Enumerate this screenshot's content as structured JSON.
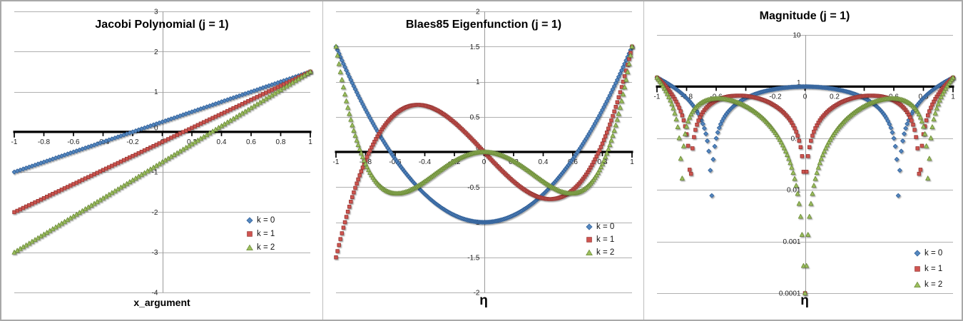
{
  "colors": {
    "background": "#ffffff",
    "outer_border": "#a9a9a9",
    "panel_separator": "#bdbdbd",
    "gridline": "#b0b0b0",
    "center_line": "#9b9b9b",
    "axis": "#000000",
    "tick_text": "#1f1f1f",
    "series": [
      {
        "name": "k = 0",
        "fill": "#5488c0",
        "stroke": "#35639b"
      },
      {
        "name": "k = 1",
        "fill": "#cf5450",
        "stroke": "#9c3a37"
      },
      {
        "name": "k = 2",
        "fill": "#9dbf5e",
        "stroke": "#6f8f3d"
      }
    ]
  },
  "chart_data": [
    {
      "type": "scatter",
      "title": "Jacobi Polynomial (j = 1)",
      "xlabel": "x_argument",
      "scale": "linear",
      "grid": true,
      "legend_position": "inside-right",
      "xlim": [
        -1,
        1
      ],
      "ylim": [
        -4,
        3
      ],
      "axis_cross": 0,
      "x_step": 0.02,
      "xtick_values": [
        -1,
        -0.8,
        -0.6,
        -0.4,
        -0.2,
        0,
        0.2,
        0.4,
        0.6,
        0.8,
        1
      ],
      "xtick_labels": [
        "-1",
        "-0.8",
        "-0.6",
        "-0.4",
        "-0.2",
        "0",
        "0.2",
        "0.4",
        "0.6",
        "0.8",
        "1"
      ],
      "ytick_values": [
        3,
        2,
        1,
        0,
        -1,
        -2,
        -3,
        -4
      ],
      "ytick_labels": [
        "3",
        "2",
        "1",
        "0",
        "-1",
        "-2",
        "-3",
        "-4"
      ],
      "sample_x": [
        -1,
        -0.9,
        -0.8,
        -0.7,
        -0.6,
        -0.5,
        -0.4,
        -0.3,
        -0.2,
        -0.1,
        0,
        0.1,
        0.2,
        0.3,
        0.4,
        0.5,
        0.6,
        0.7,
        0.8,
        0.9,
        1
      ],
      "series": [
        {
          "name": "k = 0",
          "marker": "diamond",
          "formula": "1.25*x+0.25",
          "sample_y": [
            -1,
            -0.875,
            -0.75,
            -0.625,
            -0.5,
            -0.375,
            -0.25,
            -0.125,
            0,
            0.125,
            0.25,
            0.375,
            0.5,
            0.625,
            0.75,
            0.875,
            1,
            1.125,
            1.25,
            1.375,
            1.5
          ]
        },
        {
          "name": "k = 1",
          "marker": "square",
          "formula": "1.75*x-0.25",
          "sample_y": [
            -2,
            -1.825,
            -1.65,
            -1.475,
            -1.3,
            -1.125,
            -0.95,
            -0.775,
            -0.6,
            -0.425,
            -0.25,
            -0.075,
            0.1,
            0.275,
            0.45,
            0.625,
            0.8,
            0.975,
            1.15,
            1.325,
            1.5
          ]
        },
        {
          "name": "k = 2",
          "marker": "triangle",
          "formula": "2.25*x-0.75",
          "sample_y": [
            -3,
            -2.775,
            -2.55,
            -2.325,
            -2.1,
            -1.875,
            -1.65,
            -1.425,
            -1.2,
            -0.975,
            -0.75,
            -0.525,
            -0.3,
            -0.075,
            0.15,
            0.375,
            0.6,
            0.825,
            1.05,
            1.275,
            1.5
          ]
        }
      ]
    },
    {
      "type": "scatter",
      "title": "Blaes85 Eigenfunction (j = 1)",
      "xlabel": "η",
      "scale": "linear",
      "grid": true,
      "legend_position": "inside-right",
      "xlim": [
        -1,
        1
      ],
      "ylim": [
        -2,
        2
      ],
      "axis_cross": 0,
      "x_step": 0.01,
      "xtick_values": [
        -1,
        -0.8,
        -0.6,
        -0.4,
        -0.2,
        0,
        0.2,
        0.4,
        0.6,
        0.8,
        1
      ],
      "xtick_labels": [
        "-1",
        "-0.8",
        "-0.6",
        "-0.4",
        "-0.2",
        "0",
        "0.2",
        "0.4",
        "0.6",
        "0.8",
        "1"
      ],
      "ytick_values": [
        2,
        1.5,
        1,
        0.5,
        0,
        -0.5,
        -1,
        -1.5,
        -2
      ],
      "ytick_labels": [
        "2",
        "1.5",
        "1",
        "0.5",
        "0",
        "-0.5",
        "-1",
        "-1.5",
        "-2"
      ],
      "sample_x": [
        -1,
        -0.9,
        -0.8,
        -0.7,
        -0.6,
        -0.5,
        -0.4,
        -0.3,
        -0.2,
        -0.1,
        0,
        0.1,
        0.2,
        0.3,
        0.4,
        0.5,
        0.6,
        0.7,
        0.8,
        0.9,
        1
      ],
      "series": [
        {
          "name": "k = 0",
          "marker": "diamond",
          "formula": "2.5*x*x-1",
          "sample_y": [
            1.5,
            1.025,
            0.6,
            0.225,
            -0.1,
            -0.375,
            -0.6,
            -0.775,
            -0.9,
            -0.975,
            -1,
            -0.975,
            -0.9,
            -0.775,
            -0.6,
            -0.375,
            -0.1,
            0.225,
            0.6,
            1.025,
            1.5
          ]
        },
        {
          "name": "k = 1",
          "marker": "square",
          "formula": "3.75*x*x*x-2.25*x",
          "sample_y": [
            -1.5,
            -0.709,
            -0.12,
            0.289,
            0.54,
            0.656,
            0.66,
            0.574,
            0.42,
            0.221,
            0,
            -0.221,
            -0.42,
            -0.574,
            -0.66,
            -0.656,
            -0.54,
            -0.289,
            0.12,
            0.709,
            1.5
          ]
        },
        {
          "name": "k = 2",
          "marker": "triangle",
          "formula": "4.9*x*x*x*x-3.4*x*x",
          "sample_y": [
            1.5,
            0.461,
            -0.169,
            -0.49,
            -0.589,
            -0.544,
            -0.419,
            -0.266,
            -0.128,
            -0.033,
            0,
            -0.033,
            -0.128,
            -0.266,
            -0.419,
            -0.544,
            -0.589,
            -0.49,
            -0.169,
            0.461,
            1.5
          ]
        }
      ]
    },
    {
      "type": "scatter",
      "title": "Magnitude (j = 1)",
      "xlabel": "η",
      "scale": "log",
      "grid": true,
      "legend_position": "inside-right",
      "xlim": [
        -1,
        1
      ],
      "ylim": [
        0.0001,
        10
      ],
      "axis_cross": 1,
      "x_step": 0.01,
      "abs": true,
      "floor": 0.0001,
      "xtick_values": [
        -1,
        -0.8,
        -0.6,
        -0.4,
        -0.2,
        0,
        0.2,
        0.4,
        0.6,
        0.8,
        1
      ],
      "xtick_labels": [
        "-1",
        "-0.8",
        "-0.6",
        "-0.4",
        "-0.2",
        "0",
        "0.2",
        "0.4",
        "0.6",
        "0.8",
        "1"
      ],
      "ytick_values": [
        10,
        1,
        0.1,
        0.01,
        0.001,
        0.0001
      ],
      "ytick_labels": [
        "10",
        "1",
        "0.1",
        "0.01",
        "0.001",
        "0.0001"
      ],
      "sample_x": [
        -1,
        -0.9,
        -0.8,
        -0.7,
        -0.6,
        -0.5,
        -0.4,
        -0.3,
        -0.2,
        -0.1,
        0,
        0.1,
        0.2,
        0.3,
        0.4,
        0.5,
        0.6,
        0.7,
        0.8,
        0.9,
        1
      ],
      "series": [
        {
          "name": "k = 0",
          "marker": "diamond",
          "formula": "2.5*x*x-1",
          "sample_y": [
            1.5,
            1.025,
            0.6,
            0.225,
            0.1,
            0.375,
            0.6,
            0.775,
            0.9,
            0.975,
            1,
            0.975,
            0.9,
            0.775,
            0.6,
            0.375,
            0.1,
            0.225,
            0.6,
            1.025,
            1.5
          ]
        },
        {
          "name": "k = 1",
          "marker": "square",
          "formula": "3.75*x*x*x-2.25*x",
          "sample_y": [
            1.5,
            0.709,
            0.12,
            0.289,
            0.54,
            0.656,
            0.66,
            0.574,
            0.42,
            0.221,
            0.0001,
            0.221,
            0.42,
            0.574,
            0.66,
            0.656,
            0.54,
            0.289,
            0.12,
            0.709,
            1.5
          ]
        },
        {
          "name": "k = 2",
          "marker": "triangle",
          "formula": "4.9*x*x*x*x-3.4*x*x",
          "sample_y": [
            1.5,
            0.461,
            0.169,
            0.49,
            0.589,
            0.544,
            0.419,
            0.266,
            0.128,
            0.033,
            0.0001,
            0.033,
            0.128,
            0.266,
            0.419,
            0.544,
            0.589,
            0.49,
            0.169,
            0.461,
            1.5
          ]
        }
      ]
    }
  ]
}
